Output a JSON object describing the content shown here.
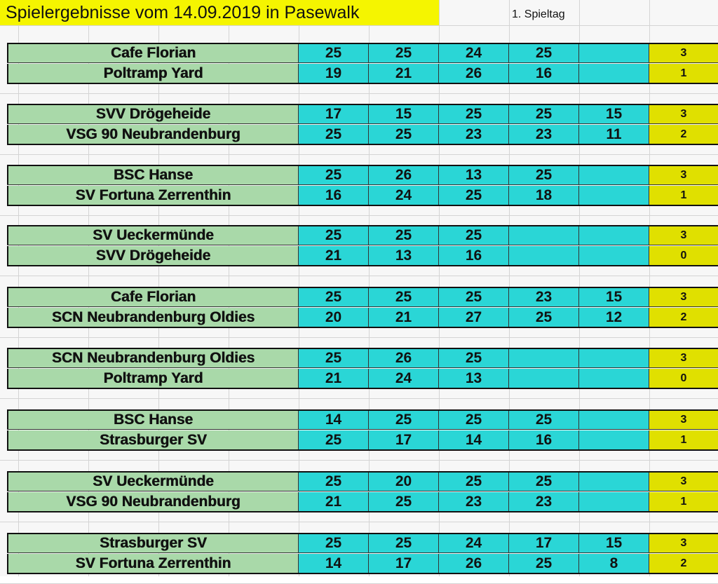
{
  "header": {
    "title": "Spielergebnisse vom 14.09.2019 in Pasewalk",
    "matchday": "1. Spieltag"
  },
  "matches": [
    {
      "teams": [
        {
          "name": "Cafe Florian",
          "sets": [
            "25",
            "25",
            "24",
            "25",
            ""
          ],
          "points": "3"
        },
        {
          "name": "Poltramp Yard",
          "sets": [
            "19",
            "21",
            "26",
            "16",
            ""
          ],
          "points": "1"
        }
      ]
    },
    {
      "teams": [
        {
          "name": "SVV Drögeheide",
          "sets": [
            "17",
            "15",
            "25",
            "25",
            "15"
          ],
          "points": "3"
        },
        {
          "name": "VSG 90 Neubrandenburg",
          "sets": [
            "25",
            "25",
            "23",
            "23",
            "11"
          ],
          "points": "2"
        }
      ]
    },
    {
      "teams": [
        {
          "name": "BSC Hanse",
          "sets": [
            "25",
            "26",
            "13",
            "25",
            ""
          ],
          "points": "3"
        },
        {
          "name": "SV Fortuna Zerrenthin",
          "sets": [
            "16",
            "24",
            "25",
            "18",
            ""
          ],
          "points": "1"
        }
      ]
    },
    {
      "teams": [
        {
          "name": "SV Ueckermünde",
          "sets": [
            "25",
            "25",
            "25",
            "",
            ""
          ],
          "points": "3"
        },
        {
          "name": "SVV Drögeheide",
          "sets": [
            "21",
            "13",
            "16",
            "",
            ""
          ],
          "points": "0"
        }
      ]
    },
    {
      "teams": [
        {
          "name": "Cafe Florian",
          "sets": [
            "25",
            "25",
            "25",
            "23",
            "15"
          ],
          "points": "3"
        },
        {
          "name": "SCN Neubrandenburg Oldies",
          "sets": [
            "20",
            "21",
            "27",
            "25",
            "12"
          ],
          "points": "2"
        }
      ]
    },
    {
      "teams": [
        {
          "name": "SCN Neubrandenburg Oldies",
          "sets": [
            "25",
            "26",
            "25",
            "",
            ""
          ],
          "points": "3"
        },
        {
          "name": "Poltramp Yard",
          "sets": [
            "21",
            "24",
            "13",
            "",
            ""
          ],
          "points": "0"
        }
      ]
    },
    {
      "teams": [
        {
          "name": "BSC Hanse",
          "sets": [
            "14",
            "25",
            "25",
            "25",
            ""
          ],
          "points": "3"
        },
        {
          "name": "Strasburger SV",
          "sets": [
            "25",
            "17",
            "14",
            "16",
            ""
          ],
          "points": "1"
        }
      ]
    },
    {
      "teams": [
        {
          "name": "SV Ueckermünde",
          "sets": [
            "25",
            "20",
            "25",
            "25",
            ""
          ],
          "points": "3"
        },
        {
          "name": "VSG 90 Neubrandenburg",
          "sets": [
            "21",
            "25",
            "23",
            "23",
            ""
          ],
          "points": "1"
        }
      ]
    },
    {
      "teams": [
        {
          "name": "Strasburger SV",
          "sets": [
            "25",
            "25",
            "24",
            "17",
            "15"
          ],
          "points": "3"
        },
        {
          "name": "SV Fortuna Zerrenthin",
          "sets": [
            "14",
            "17",
            "26",
            "25",
            "8"
          ],
          "points": "2"
        }
      ]
    }
  ],
  "colors": {
    "title_bg": "#f5f500",
    "team_bg": "#a9d9a9",
    "score_bg": "#2ad6d6",
    "points_bg": "#e0e000"
  }
}
